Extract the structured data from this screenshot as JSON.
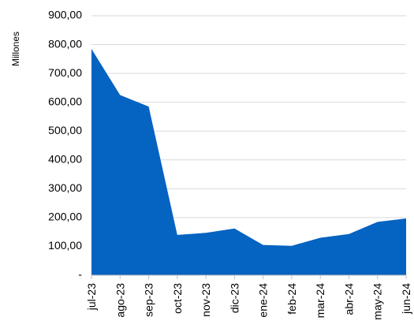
{
  "chart_data": {
    "type": "area",
    "title": "",
    "xlabel": "",
    "ylabel": "Millones",
    "categories": [
      "jul-23",
      "ago-23",
      "sep-23",
      "oct-23",
      "nov-23",
      "dic-23",
      "ene-24",
      "feb-24",
      "mar-24",
      "abr-24",
      "may-24",
      "jun-24"
    ],
    "values": [
      785,
      625,
      585,
      140,
      147,
      162,
      105,
      102,
      130,
      143,
      185,
      197
    ],
    "ylim": [
      0,
      900
    ],
    "yticks": [
      0,
      100,
      200,
      300,
      400,
      500,
      600,
      700,
      800,
      900
    ],
    "ytick_labels": [
      "-",
      "100,00",
      "200,00",
      "300,00",
      "400,00",
      "500,00",
      "600,00",
      "700,00",
      "800,00",
      "900,00"
    ],
    "grid": true,
    "legend": "none",
    "colors": {
      "area": "#0563C1",
      "grid": "#D9D9D9",
      "axis": "#BFBFBF"
    }
  }
}
